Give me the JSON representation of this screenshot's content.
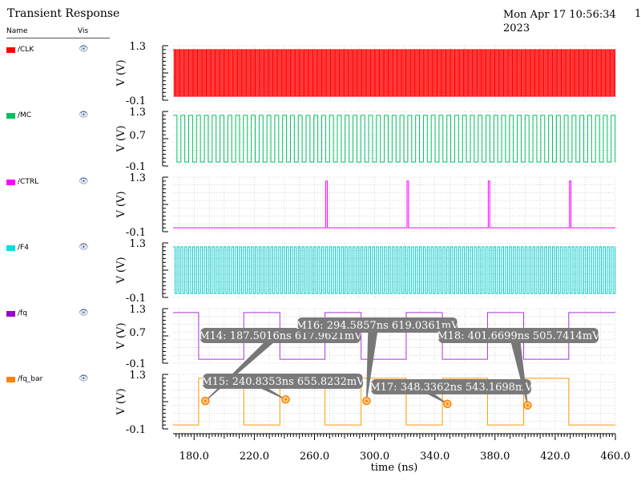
{
  "window": {
    "title": "Transient Response",
    "date": "Mon Apr 17 10:56:34 2023",
    "page_number": "1"
  },
  "legend": {
    "name_header": "Name",
    "vis_header": "Vis",
    "items": [
      {
        "name": "/CLK",
        "color": "#ff0000",
        "icon": "eye-icon"
      },
      {
        "name": "/MC",
        "color": "#00c060",
        "icon": "eye-icon"
      },
      {
        "name": "/CTRL",
        "color": "#ff00ff",
        "icon": "eye-icon"
      },
      {
        "name": "/F4",
        "color": "#00e0e0",
        "icon": "eye-icon"
      },
      {
        "name": "/fq",
        "color": "#9900cc",
        "icon": "eye-icon"
      },
      {
        "name": "/fq_bar",
        "color": "#ff8000",
        "icon": "eye-icon"
      }
    ]
  },
  "chart_data": {
    "type": "line",
    "xlabel": "time (ns)",
    "xlim": [
      166,
      460
    ],
    "x_ticks": [
      "180.0",
      "220.0",
      "260.0",
      "300.0",
      "340.0",
      "380.0",
      "420.0",
      "460.0"
    ],
    "grid": true,
    "panels": [
      {
        "signal": "/CLK",
        "ylabel": "V (V)",
        "ylim": [
          -0.1,
          1.3
        ],
        "y_ticks": [
          "1.3",
          "-0.1"
        ],
        "waveform": "clock",
        "period_ns": 1.3,
        "high": 1.2,
        "low": 0.0,
        "color": "#ff0000"
      },
      {
        "signal": "/MC",
        "ylabel": "V (V)",
        "ylim": [
          -0.1,
          1.3
        ],
        "y_ticks": [
          "1.3",
          "0.7",
          "-0.1"
        ],
        "waveform": "clock",
        "period_ns": 5.2,
        "high": 1.2,
        "low": 0.0,
        "color": "#00c060"
      },
      {
        "signal": "/CTRL",
        "ylabel": "V (V)",
        "ylim": [
          -0.1,
          1.3
        ],
        "y_ticks": [
          "1.3",
          "-0.1"
        ],
        "waveform": "pulses",
        "pulse_times_ns": [
          267.5,
          321.5,
          375.5,
          429.5
        ],
        "pulse_width_ns": 1.0,
        "high": 1.2,
        "low": 0.0,
        "color": "#ff00ff"
      },
      {
        "signal": "/F4",
        "ylabel": "V (V)",
        "ylim": [
          -0.1,
          1.3
        ],
        "y_ticks": [
          "1.3",
          "-0.1"
        ],
        "waveform": "clock",
        "period_ns": 2.6,
        "high": 1.2,
        "low": 0.0,
        "color": "#00c8c8"
      },
      {
        "signal": "/fq",
        "ylabel": "V (V)",
        "ylim": [
          -0.1,
          1.3
        ],
        "y_ticks": [
          "1.3",
          "0.7",
          "-0.1"
        ],
        "waveform": "square",
        "edges_ns": [
          166,
          183,
          213,
          237,
          267,
          291,
          321,
          345,
          375,
          399,
          429,
          460
        ],
        "start_level": 1.2,
        "high": 1.2,
        "low": 0.0,
        "color": "#aa33dd"
      },
      {
        "signal": "/fq_bar",
        "ylabel": "V (V)",
        "ylim": [
          -0.1,
          1.3
        ],
        "y_ticks": [
          "1.3",
          "-0.1"
        ],
        "waveform": "square",
        "edges_ns": [
          166,
          183,
          213,
          237,
          267,
          291,
          321,
          345,
          375,
          399,
          429,
          460
        ],
        "start_level": 0.0,
        "high": 1.2,
        "low": 0.0,
        "color": "#ff9900"
      }
    ],
    "markers": [
      {
        "label": "M14: 187.5016ns 617.9621mV",
        "panel": 4,
        "x": 187.5016,
        "y": 0.6179621
      },
      {
        "label": "M15: 240.8353ns 655.8232mV",
        "panel": 5,
        "x": 240.8353,
        "y": 0.6558232
      },
      {
        "label": "M16: 294.5857ns 619.0361mV",
        "panel": 4,
        "x": 294.5857,
        "y": 0.6190361
      },
      {
        "label": "M17: 348.3362ns 543.1698mV",
        "panel": 5,
        "x": 348.3362,
        "y": 0.5431698
      },
      {
        "label": "M18: 401.6699ns 505.7414mV",
        "panel": 4,
        "x": 401.6699,
        "y": 0.5057414
      }
    ]
  }
}
